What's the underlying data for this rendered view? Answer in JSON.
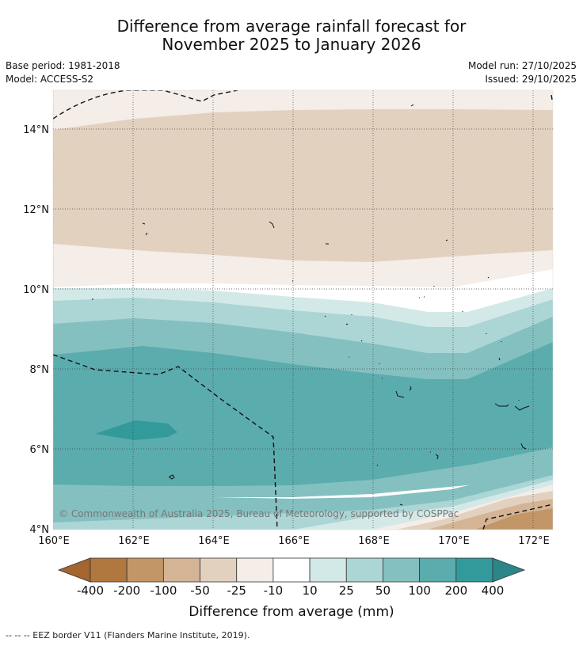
{
  "title_line1": "Difference from average rainfall forecast for",
  "title_line2": "November 2025 to January 2026",
  "meta": {
    "base_period": "Base period: 1981-2018",
    "model": "Model: ACCESS-S2",
    "model_run": "Model run: 27/10/2025",
    "issued": "Issued: 29/10/2025"
  },
  "map": {
    "lon_labels": [
      "160°E",
      "162°E",
      "164°E",
      "166°E",
      "168°E",
      "170°E",
      "172°E"
    ],
    "lat_labels": [
      "14°N",
      "12°N",
      "10°N",
      "8°N",
      "6°N",
      "4°N"
    ],
    "copyright": "© Commonwealth of Australia 2025, Bureau of Meteorology, supported by COSPPac"
  },
  "colorbar": {
    "tick_labels": [
      "-400",
      "-200",
      "-100",
      "-50",
      "-25",
      "-10",
      "10",
      "25",
      "50",
      "100",
      "200",
      "400"
    ],
    "colors": [
      "#a4652f",
      "#b0773e",
      "#c29666",
      "#d4b495",
      "#e3d1c0",
      "#f4ede8",
      "#ffffff",
      "#d3e9e8",
      "#acd5d5",
      "#85c0c0",
      "#5bacad",
      "#329a9b",
      "#2c8586"
    ],
    "title": "Difference from average (mm)"
  },
  "footer": "--  --  -- EEZ border V11 (Flanders Marine Institute, 2019)."
}
